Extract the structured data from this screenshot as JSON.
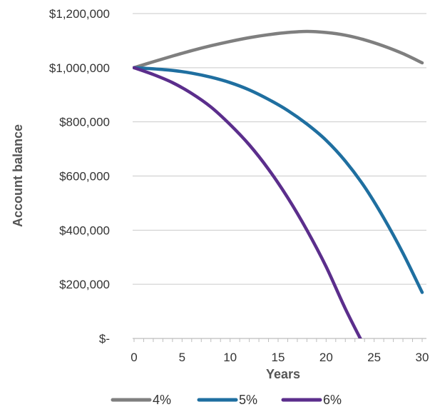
{
  "chart_data": {
    "type": "line",
    "xlabel": "Years",
    "ylabel": "Account balance",
    "xlim": [
      0,
      30
    ],
    "ylim": [
      0,
      1200000
    ],
    "x_ticks": [
      0,
      5,
      10,
      15,
      20,
      25,
      30
    ],
    "x_tick_labels": [
      "0",
      "5",
      "10",
      "15",
      "20",
      "25",
      "30"
    ],
    "y_ticks": [
      0,
      200000,
      400000,
      600000,
      800000,
      1000000,
      1200000
    ],
    "y_tick_labels": [
      "$-",
      "$200,000",
      "$400,000",
      "$600,000",
      "$800,000",
      "$1,000,000",
      "$1,200,000"
    ],
    "grid": "horizontal",
    "legend_position": "bottom",
    "series": [
      {
        "name": "4%",
        "color": "#7f7f7f",
        "x": [
          0,
          2,
          4,
          6,
          8,
          10,
          12,
          14,
          16,
          18,
          20,
          22,
          24,
          26,
          28,
          30
        ],
        "y": [
          1000000,
          1022000,
          1043000,
          1063000,
          1081000,
          1097000,
          1111000,
          1122000,
          1130000,
          1134000,
          1130000,
          1120000,
          1103000,
          1080000,
          1052000,
          1018000
        ]
      },
      {
        "name": "5%",
        "color": "#1f6fa0",
        "x": [
          0,
          2,
          4,
          6,
          8,
          10,
          12,
          14,
          16,
          18,
          20,
          22,
          24,
          26,
          28,
          30
        ],
        "y": [
          1000000,
          996000,
          990000,
          980000,
          965000,
          945000,
          918000,
          883000,
          842000,
          792000,
          732000,
          655000,
          560000,
          445000,
          315000,
          170000
        ]
      },
      {
        "name": "6%",
        "color": "#5b2e8c",
        "x": [
          0,
          2,
          4,
          6,
          8,
          10,
          12,
          14,
          16,
          18,
          20,
          22,
          24,
          24.5
        ],
        "y": [
          1000000,
          975000,
          945000,
          905000,
          855000,
          790000,
          715000,
          625000,
          520000,
          400000,
          265000,
          110000,
          -30000,
          -60000
        ]
      }
    ]
  }
}
